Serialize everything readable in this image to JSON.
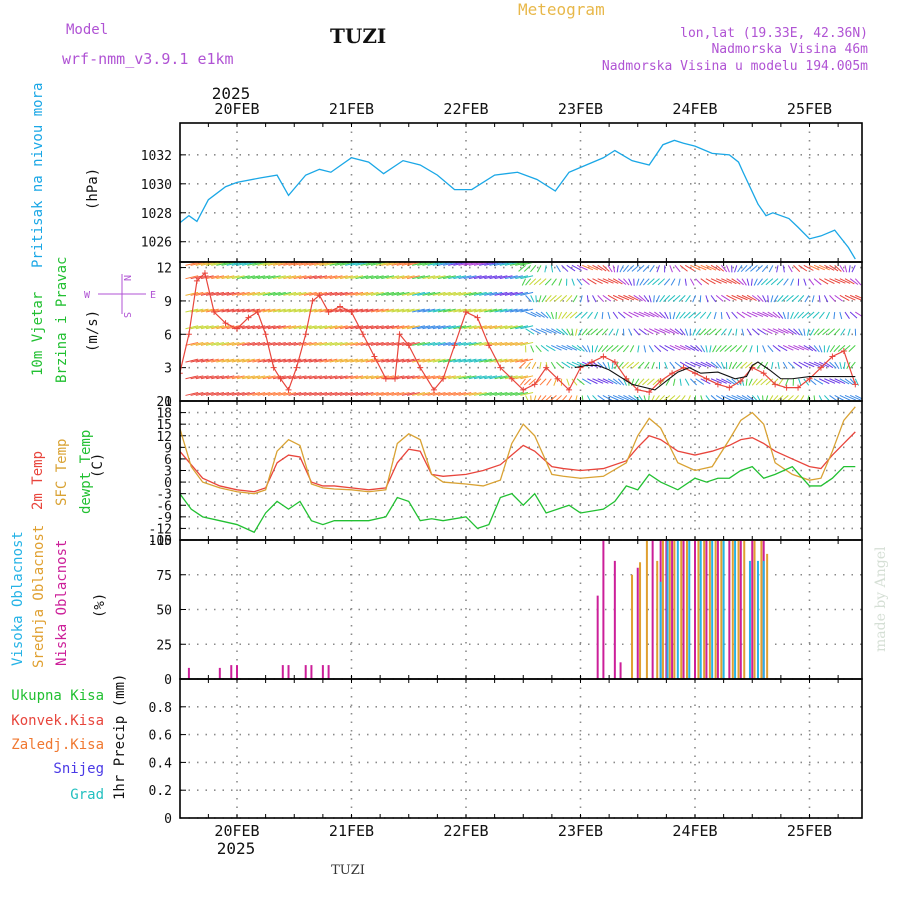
{
  "header": {
    "model_label": "Model",
    "model_name": "wrf-nmm_v3.9.1 e1km",
    "station": "TUZI",
    "title": "Meteogram",
    "location": "lon,lat (19.33E, 42.36N)",
    "elevation": "Nadmorska Visina 46m",
    "model_elevation": "Nadmorska Visina u modelu 194.005m",
    "year_top": "2025",
    "year_bottom": "2025",
    "footer_station": "TUZI",
    "watermark": "made by Angel",
    "compass": {
      "n": "N",
      "s": "S",
      "e": "E",
      "w": "W"
    }
  },
  "colors": {
    "pressure": "#1aa7e6",
    "temp2m": "#e8453c",
    "sfc": "#d9a233",
    "dewpt": "#22c032",
    "high_cloud": "#26b3e6",
    "mid_cloud": "#e0a030",
    "low_cloud": "#cc1f99",
    "grid": "#8a8a8a",
    "wind_trace": "#e8453c"
  },
  "chart_data": [
    {
      "type": "line",
      "panel": "pressure",
      "ylabel_lines": [
        "Pritisak na nivou mora",
        "(hPa)"
      ],
      "ylim": [
        1024.6,
        1034.2
      ],
      "yticks": [
        1026,
        1028,
        1030,
        1032
      ],
      "x_unit": "days since 20FEB 00UTC",
      "x_ticks": [
        "20FEB",
        "21FEB",
        "22FEB",
        "23FEB",
        "24FEB",
        "25FEB"
      ],
      "series": [
        {
          "name": "Pritisak na nivou mora",
          "x": [
            -0.5,
            -0.42,
            -0.35,
            -0.25,
            -0.1,
            0,
            0.2,
            0.35,
            0.45,
            0.6,
            0.72,
            0.82,
            1.0,
            1.15,
            1.28,
            1.45,
            1.6,
            1.75,
            1.9,
            2.05,
            2.25,
            2.45,
            2.62,
            2.78,
            2.9,
            3.05,
            3.2,
            3.3,
            3.45,
            3.6,
            3.72,
            3.82,
            3.9,
            4.0,
            4.15,
            4.3,
            4.38,
            4.42,
            4.55,
            4.62,
            4.68,
            4.82,
            4.9,
            5.0,
            5.1,
            5.22,
            5.34,
            5.4
          ],
          "y": [
            1027.3,
            1027.8,
            1027.4,
            1028.9,
            1029.8,
            1030.1,
            1030.4,
            1030.6,
            1029.2,
            1030.6,
            1031.0,
            1030.8,
            1031.8,
            1031.5,
            1030.7,
            1031.6,
            1031.3,
            1030.6,
            1029.6,
            1029.6,
            1030.6,
            1030.8,
            1030.3,
            1029.5,
            1030.8,
            1031.3,
            1031.8,
            1032.3,
            1031.6,
            1031.3,
            1032.7,
            1033.0,
            1032.8,
            1032.6,
            1032.1,
            1032.0,
            1031.5,
            1030.8,
            1028.6,
            1027.8,
            1028.0,
            1027.6,
            1027.0,
            1026.2,
            1026.4,
            1026.8,
            1025.6,
            1024.8
          ]
        }
      ]
    },
    {
      "type": "line",
      "panel": "wind",
      "ylabel_lines": [
        "10m Vjetar",
        "Brzina i Pravac",
        "(m/s)"
      ],
      "ylim": [
        0,
        12.5
      ],
      "yticks": [
        0,
        3,
        6,
        9,
        12
      ],
      "series": [
        {
          "name": "Brzina",
          "x": [
            -0.5,
            -0.42,
            -0.35,
            -0.28,
            -0.2,
            -0.1,
            0,
            0.1,
            0.18,
            0.25,
            0.32,
            0.38,
            0.45,
            0.52,
            0.6,
            0.66,
            0.72,
            0.8,
            0.9,
            1.0,
            1.1,
            1.2,
            1.3,
            1.38,
            1.42,
            1.5,
            1.6,
            1.72,
            1.8,
            1.9,
            2.0,
            2.1,
            2.2,
            2.3,
            2.4,
            2.5,
            2.6,
            2.7,
            2.8,
            2.9,
            3.0,
            3.1,
            3.2,
            3.3,
            3.4,
            3.5,
            3.6,
            3.7,
            3.8,
            3.9,
            4.0,
            4.1,
            4.2,
            4.3,
            4.4,
            4.5,
            4.6,
            4.7,
            4.8,
            4.9,
            5.0,
            5.1,
            5.2,
            5.3,
            5.4
          ],
          "y": [
            2.5,
            6,
            10.8,
            11.5,
            8,
            7,
            6.5,
            7.5,
            8,
            6,
            3,
            2,
            1,
            3,
            6,
            9,
            9.5,
            8,
            8.5,
            8,
            6,
            4,
            2,
            2,
            6,
            5,
            3,
            1,
            2,
            5,
            8,
            7.5,
            5,
            3,
            2,
            1,
            1.5,
            3,
            2,
            1,
            3,
            3.5,
            4,
            3.5,
            2,
            1,
            0.8,
            1.8,
            2.5,
            3,
            2.5,
            2,
            1.5,
            1.2,
            1.8,
            3,
            2.5,
            1.5,
            1.2,
            1.2,
            2,
            3,
            4,
            4.5,
            1.5
          ]
        },
        {
          "name": "Smjer",
          "x": [
            2.95,
            3.05,
            3.15,
            3.25,
            3.45,
            3.65,
            3.75,
            3.85,
            3.95,
            4.05,
            4.2,
            4.35,
            4.45,
            4.5,
            4.55,
            4.65,
            4.75,
            4.85,
            5.0,
            5.2,
            5.4
          ],
          "y": [
            3,
            3.2,
            3.2,
            2.8,
            1.5,
            1,
            1.8,
            2.6,
            3,
            2.5,
            2.6,
            2,
            2.2,
            3.2,
            3.5,
            2.8,
            2,
            2,
            2.2,
            2.2,
            2.2
          ]
        }
      ]
    },
    {
      "type": "line",
      "panel": "temperature",
      "ylabel_lines": [
        "2m Temp",
        "SFC Temp",
        "dewpt Temp",
        "(C)"
      ],
      "ylim": [
        -15,
        21
      ],
      "yticks": [
        -15,
        -12,
        -9,
        -6,
        -3,
        0,
        3,
        6,
        9,
        12,
        15,
        18,
        21
      ],
      "series": [
        {
          "name": "2m Temp",
          "x": [
            -0.5,
            -0.4,
            -0.3,
            -0.15,
            0,
            0.15,
            0.25,
            0.35,
            0.45,
            0.55,
            0.65,
            0.75,
            0.85,
            1.0,
            1.15,
            1.3,
            1.4,
            1.5,
            1.6,
            1.7,
            1.8,
            2.0,
            2.15,
            2.3,
            2.4,
            2.5,
            2.6,
            2.75,
            2.85,
            3.0,
            3.2,
            3.4,
            3.5,
            3.6,
            3.7,
            3.85,
            4.0,
            4.15,
            4.3,
            4.4,
            4.5,
            4.6,
            4.7,
            4.85,
            5.0,
            5.1,
            5.2,
            5.3,
            5.4
          ],
          "y": [
            8,
            4.5,
            1,
            -1,
            -2,
            -2.5,
            -1.5,
            5,
            7,
            6.5,
            0,
            -1,
            -1,
            -1.5,
            -2,
            -1.5,
            5,
            8.5,
            8,
            2,
            1.5,
            2,
            3,
            4.5,
            7,
            9.5,
            8,
            4,
            3.5,
            3,
            3.5,
            5.5,
            9,
            12,
            11,
            8,
            7,
            8,
            9.5,
            11,
            11.5,
            10,
            8,
            6,
            4,
            3.5,
            7,
            10,
            13
          ]
        },
        {
          "name": "SFC Temp",
          "x": [
            -0.5,
            -0.4,
            -0.3,
            -0.15,
            0,
            0.15,
            0.25,
            0.35,
            0.45,
            0.55,
            0.65,
            0.75,
            0.85,
            1.0,
            1.15,
            1.3,
            1.4,
            1.5,
            1.6,
            1.7,
            1.8,
            2.0,
            2.15,
            2.3,
            2.4,
            2.5,
            2.6,
            2.75,
            2.85,
            3.0,
            3.2,
            3.4,
            3.5,
            3.6,
            3.7,
            3.85,
            4.0,
            4.15,
            4.3,
            4.4,
            4.5,
            4.6,
            4.7,
            4.85,
            5.0,
            5.1,
            5.2,
            5.3,
            5.4
          ],
          "y": [
            14,
            4,
            0,
            -1.5,
            -2.5,
            -3,
            -2,
            8,
            11,
            9.5,
            -0.5,
            -1.5,
            -1.8,
            -2,
            -2.5,
            -2,
            10,
            12.5,
            11,
            2,
            0,
            -0.5,
            -1,
            0.5,
            10,
            15,
            12,
            2,
            1.5,
            1,
            1.5,
            5,
            12,
            16.5,
            14,
            5,
            3,
            4,
            11,
            16,
            18,
            15,
            5,
            2,
            0.5,
            1,
            8,
            16,
            19.5
          ]
        },
        {
          "name": "dewpt Temp",
          "x": [
            -0.5,
            -0.4,
            -0.3,
            -0.15,
            0,
            0.15,
            0.25,
            0.35,
            0.45,
            0.55,
            0.65,
            0.75,
            0.85,
            1.0,
            1.15,
            1.3,
            1.4,
            1.5,
            1.6,
            1.7,
            1.8,
            2.0,
            2.1,
            2.2,
            2.3,
            2.4,
            2.5,
            2.6,
            2.7,
            2.8,
            2.9,
            3.0,
            3.2,
            3.3,
            3.4,
            3.5,
            3.6,
            3.7,
            3.85,
            4.0,
            4.1,
            4.2,
            4.3,
            4.4,
            4.5,
            4.6,
            4.7,
            4.85,
            5.0,
            5.1,
            5.2,
            5.3,
            5.4
          ],
          "y": [
            -3,
            -7,
            -9,
            -10,
            -11,
            -13,
            -8,
            -5,
            -7,
            -5,
            -10,
            -11,
            -10,
            -10,
            -10,
            -9,
            -4,
            -5,
            -10,
            -9.5,
            -10,
            -9,
            -12,
            -11,
            -4,
            -3,
            -6,
            -3,
            -8,
            -7,
            -6,
            -8,
            -7,
            -5,
            -1,
            -2,
            2,
            0,
            -2,
            1,
            0,
            1,
            1,
            3,
            4,
            1,
            2,
            4,
            -1,
            -1,
            1,
            4,
            4
          ]
        }
      ]
    },
    {
      "type": "bar",
      "panel": "clouds",
      "ylabel_lines": [
        "Visoka Oblacnost",
        "Srednja Oblacnost",
        "Niska Oblacnost",
        "(%)"
      ],
      "ylim": [
        0,
        100
      ],
      "yticks": [
        0,
        25,
        50,
        75,
        100
      ],
      "series": [
        {
          "name": "Niska Oblacnost",
          "x": [
            -0.42,
            -0.15,
            -0.05,
            0.0,
            0.4,
            0.45,
            0.6,
            0.65,
            0.75,
            0.8,
            3.15,
            3.2,
            3.3,
            3.35,
            3.5,
            3.63,
            3.7,
            3.75,
            3.8,
            3.9,
            4.0,
            4.1,
            4.2,
            4.3,
            4.4,
            4.5,
            4.6
          ],
          "y": [
            8,
            8,
            10,
            10,
            10,
            10,
            10,
            10,
            10,
            10,
            60,
            100,
            85,
            12,
            80,
            100,
            100,
            100,
            100,
            100,
            100,
            100,
            100,
            100,
            100,
            100,
            100
          ]
        },
        {
          "name": "Srednja Oblacnost",
          "x": [
            3.45,
            3.52,
            3.58,
            3.67,
            3.72,
            3.78,
            3.82,
            3.88,
            3.93,
            4.03,
            4.08,
            4.13,
            4.18,
            4.23,
            4.33,
            4.38,
            4.43,
            4.52,
            4.58,
            4.63
          ],
          "y": [
            75,
            84,
            100,
            85,
            100,
            100,
            100,
            100,
            100,
            100,
            100,
            100,
            100,
            100,
            100,
            100,
            100,
            100,
            100,
            90
          ]
        },
        {
          "name": "Visoka Oblacnost",
          "x": [
            3.7,
            3.76,
            3.85,
            3.95,
            4.05,
            4.15,
            4.25,
            4.35,
            4.48,
            4.55,
            4.6
          ],
          "y": [
            70,
            100,
            100,
            100,
            100,
            100,
            100,
            100,
            85,
            85,
            85
          ]
        }
      ]
    },
    {
      "type": "bar",
      "panel": "precip",
      "ylabel_lines": [
        "1hr Precip (mm)"
      ],
      "legend_entries": [
        "Ukupna Kisa",
        "Konvek.Kisa",
        "Zaledj.Kisa",
        "Snijeg",
        "Grad"
      ],
      "ylim": [
        0,
        1
      ],
      "yticks": [
        0,
        0.2,
        0.4,
        0.6,
        0.8
      ],
      "series": [
        {
          "name": "Ukupna Kisa",
          "x": [],
          "y": []
        },
        {
          "name": "Konvek.Kisa",
          "x": [],
          "y": []
        },
        {
          "name": "Zaledj.Kisa",
          "x": [],
          "y": []
        },
        {
          "name": "Snijeg",
          "x": [],
          "y": []
        },
        {
          "name": "Grad",
          "x": [],
          "y": []
        }
      ]
    }
  ]
}
